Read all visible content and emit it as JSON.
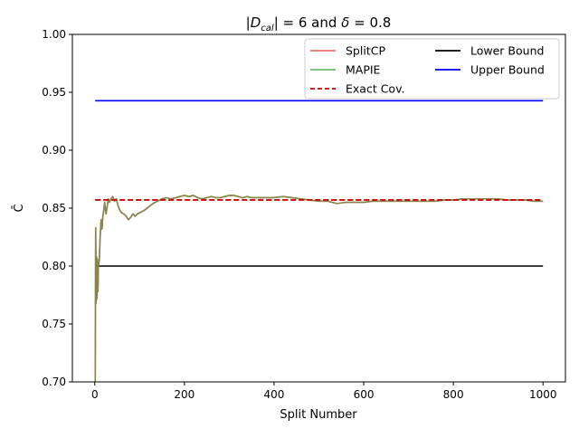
{
  "chart_data": {
    "type": "line",
    "title": "|D_cal| = 6 and δ = 0.8",
    "title_parts": {
      "prefix": "|D",
      "sub": "cal",
      "middle": "| = 6 and ",
      "delta": "δ",
      "suffix": " = 0.8"
    },
    "xlabel": "Split Number",
    "ylabel": "C̄",
    "xlim": [
      -50,
      1050
    ],
    "ylim": [
      0.7,
      1.0
    ],
    "x_ticks": [
      0,
      200,
      400,
      600,
      800,
      1000
    ],
    "x_tick_labels": [
      "0",
      "200",
      "400",
      "600",
      "800",
      "1000"
    ],
    "y_ticks": [
      0.7,
      0.75,
      0.8,
      0.85,
      0.9,
      0.95,
      1.0
    ],
    "y_tick_labels": [
      "0.70",
      "0.75",
      "0.80",
      "0.85",
      "0.90",
      "0.95",
      "1.00"
    ],
    "grid": false,
    "legend_placement": "top-right",
    "series": [
      {
        "name": "SplitCP",
        "color": "#e8756b",
        "style": "solid",
        "x": [
          1,
          2,
          3,
          4,
          5,
          6,
          7,
          8,
          10,
          12,
          14,
          16,
          18,
          20,
          22,
          25,
          28,
          30,
          33,
          36,
          40,
          44,
          48,
          52,
          56,
          60,
          65,
          70,
          75,
          80,
          85,
          90,
          95,
          100,
          110,
          120,
          130,
          140,
          150,
          160,
          170,
          180,
          190,
          200,
          210,
          220,
          230,
          240,
          250,
          260,
          270,
          280,
          290,
          300,
          310,
          320,
          330,
          340,
          350,
          360,
          380,
          400,
          420,
          440,
          460,
          480,
          500,
          520,
          540,
          560,
          580,
          600,
          620,
          640,
          660,
          680,
          700,
          720,
          740,
          760,
          780,
          800,
          820,
          840,
          860,
          880,
          900,
          920,
          940,
          960,
          980,
          1000
        ],
        "y": [
          0.7,
          0.833,
          0.768,
          0.808,
          0.772,
          0.806,
          0.778,
          0.8,
          0.805,
          0.825,
          0.84,
          0.832,
          0.843,
          0.848,
          0.855,
          0.845,
          0.852,
          0.858,
          0.855,
          0.858,
          0.86,
          0.856,
          0.858,
          0.852,
          0.848,
          0.846,
          0.845,
          0.843,
          0.84,
          0.842,
          0.845,
          0.843,
          0.845,
          0.846,
          0.848,
          0.851,
          0.854,
          0.856,
          0.858,
          0.859,
          0.858,
          0.859,
          0.86,
          0.861,
          0.86,
          0.861,
          0.859,
          0.858,
          0.859,
          0.86,
          0.859,
          0.859,
          0.86,
          0.861,
          0.861,
          0.86,
          0.859,
          0.86,
          0.859,
          0.859,
          0.859,
          0.859,
          0.86,
          0.859,
          0.858,
          0.857,
          0.856,
          0.856,
          0.854,
          0.855,
          0.855,
          0.855,
          0.856,
          0.856,
          0.856,
          0.856,
          0.856,
          0.856,
          0.856,
          0.856,
          0.857,
          0.857,
          0.858,
          0.858,
          0.858,
          0.858,
          0.858,
          0.857,
          0.857,
          0.857,
          0.856,
          0.856
        ]
      },
      {
        "name": "MAPIE",
        "color": "#6fb86f",
        "style": "solid",
        "x": [
          1,
          2,
          3,
          4,
          5,
          6,
          7,
          8,
          10,
          12,
          14,
          16,
          18,
          20,
          22,
          25,
          28,
          30,
          33,
          36,
          40,
          44,
          48,
          52,
          56,
          60,
          65,
          70,
          75,
          80,
          85,
          90,
          95,
          100,
          110,
          120,
          130,
          140,
          150,
          160,
          170,
          180,
          190,
          200,
          210,
          220,
          230,
          240,
          250,
          260,
          270,
          280,
          290,
          300,
          310,
          320,
          330,
          340,
          350,
          360,
          380,
          400,
          420,
          440,
          460,
          480,
          500,
          520,
          540,
          560,
          580,
          600,
          620,
          640,
          660,
          680,
          700,
          720,
          740,
          760,
          780,
          800,
          820,
          840,
          860,
          880,
          900,
          920,
          940,
          960,
          980,
          1000
        ],
        "y": [
          0.7,
          0.833,
          0.768,
          0.808,
          0.772,
          0.806,
          0.778,
          0.8,
          0.805,
          0.825,
          0.84,
          0.832,
          0.843,
          0.848,
          0.855,
          0.845,
          0.852,
          0.858,
          0.855,
          0.858,
          0.86,
          0.856,
          0.858,
          0.852,
          0.848,
          0.846,
          0.845,
          0.843,
          0.84,
          0.842,
          0.845,
          0.843,
          0.845,
          0.846,
          0.848,
          0.851,
          0.854,
          0.856,
          0.858,
          0.859,
          0.858,
          0.859,
          0.86,
          0.861,
          0.86,
          0.861,
          0.859,
          0.858,
          0.859,
          0.86,
          0.859,
          0.859,
          0.86,
          0.861,
          0.861,
          0.86,
          0.859,
          0.86,
          0.859,
          0.859,
          0.859,
          0.859,
          0.86,
          0.859,
          0.858,
          0.857,
          0.856,
          0.856,
          0.854,
          0.855,
          0.855,
          0.855,
          0.856,
          0.856,
          0.856,
          0.856,
          0.856,
          0.856,
          0.856,
          0.856,
          0.857,
          0.857,
          0.858,
          0.858,
          0.858,
          0.858,
          0.858,
          0.857,
          0.857,
          0.857,
          0.856,
          0.856
        ]
      },
      {
        "name": "Exact Cov.",
        "color": "#cc0000",
        "style": "dashed",
        "x": [
          1,
          1000
        ],
        "y": [
          0.8571,
          0.8571
        ]
      },
      {
        "name": "Lower Bound",
        "color": "#000000",
        "style": "solid",
        "x": [
          1,
          1000
        ],
        "y": [
          0.8,
          0.8
        ]
      },
      {
        "name": "Upper Bound",
        "color": "#0000ff",
        "style": "solid",
        "x": [
          1,
          1000
        ],
        "y": [
          0.9427,
          0.9427
        ]
      }
    ]
  }
}
